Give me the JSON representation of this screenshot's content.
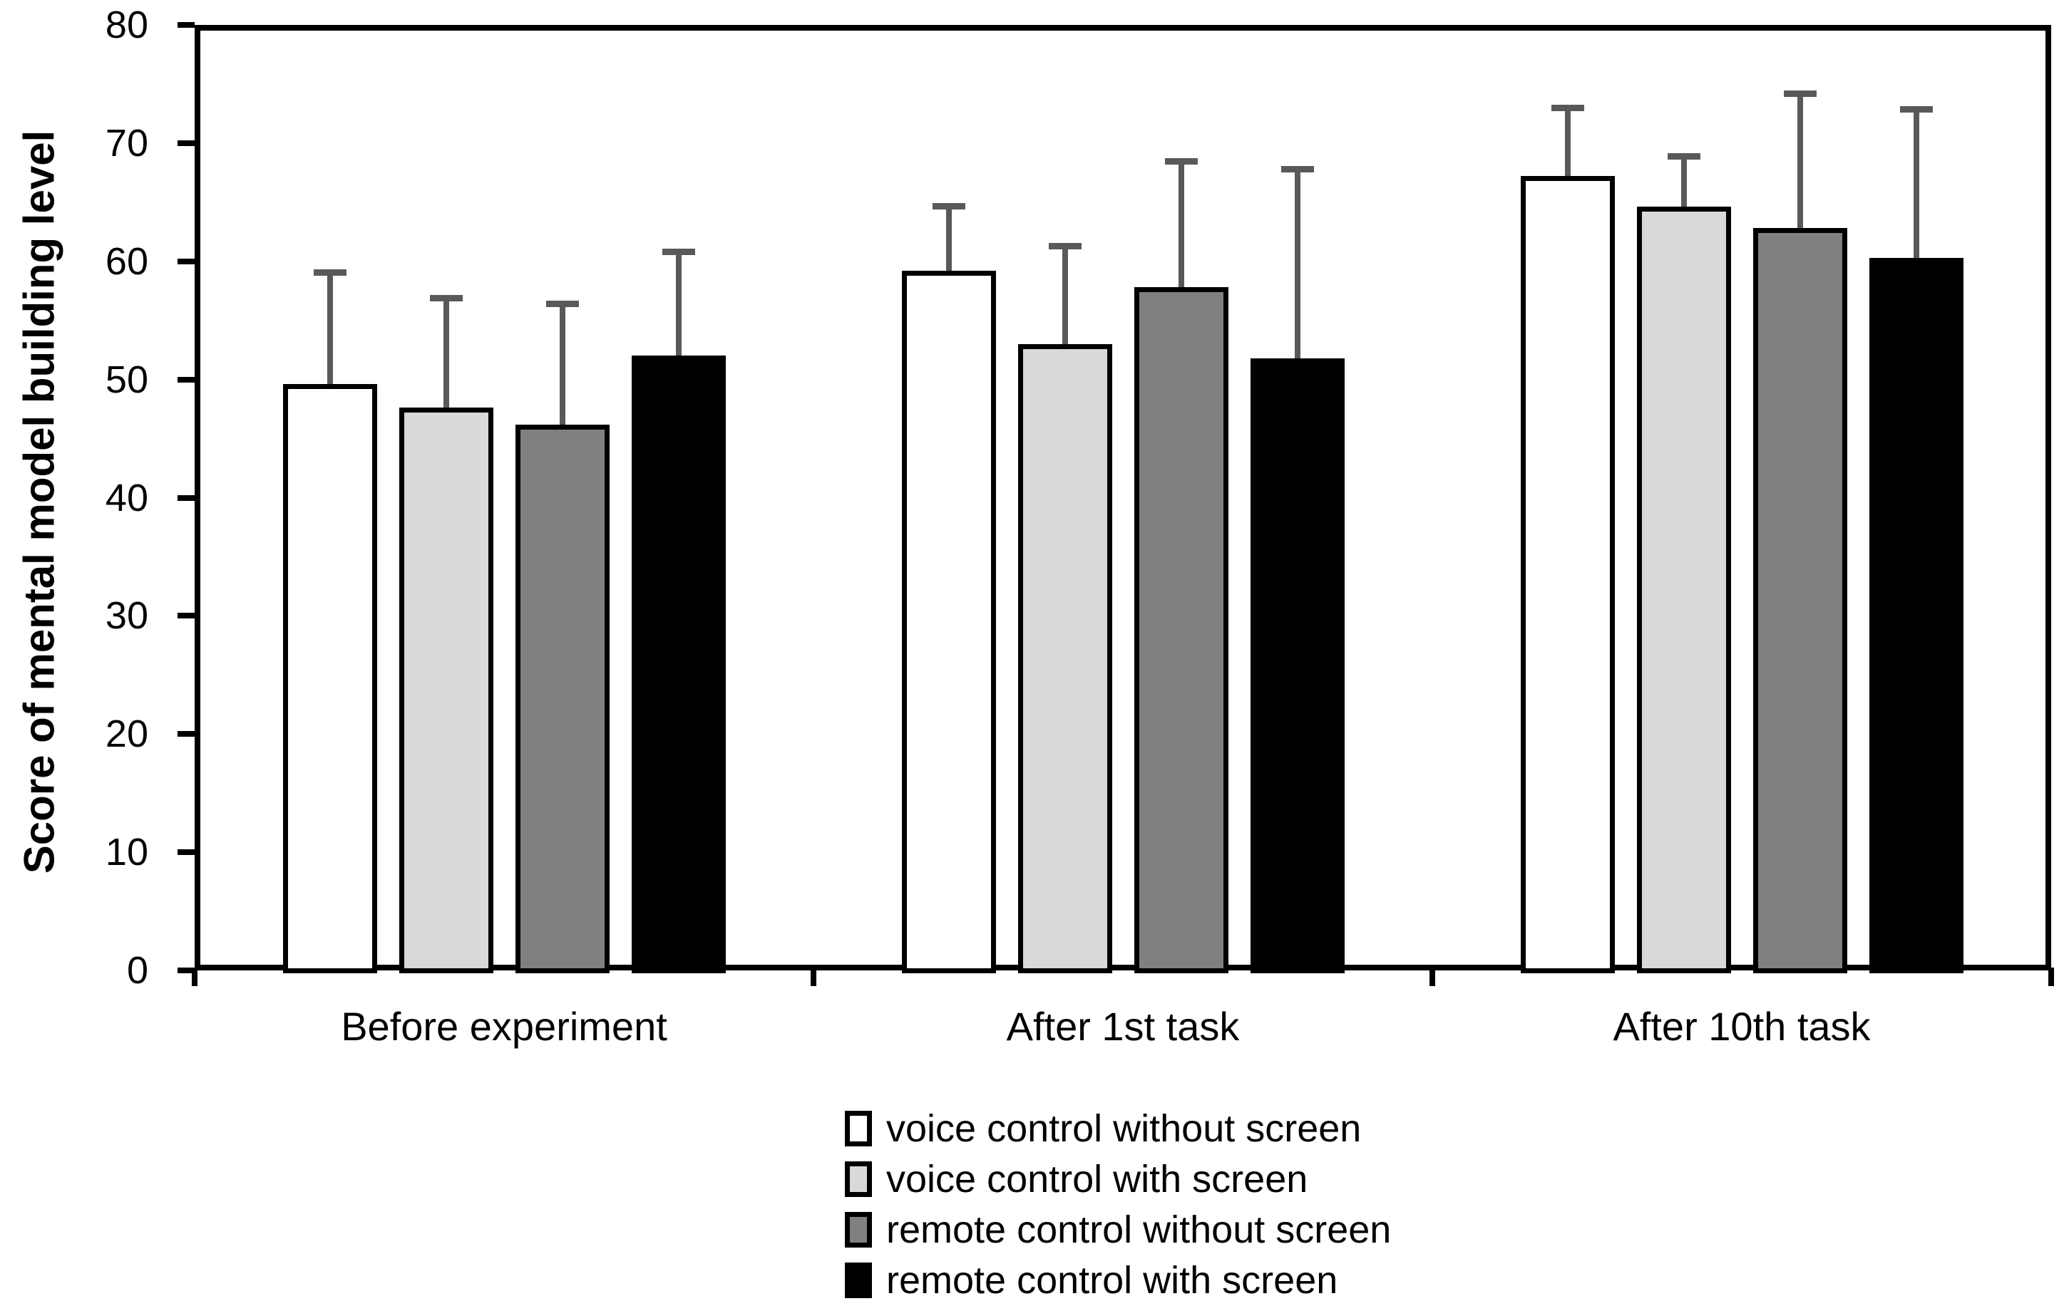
{
  "chart_data": {
    "type": "bar",
    "title": "",
    "ylabel": "Score of mental model building level",
    "xlabel": "",
    "ylim": [
      0,
      80
    ],
    "yticks": [
      0,
      10,
      20,
      30,
      40,
      50,
      60,
      70,
      80
    ],
    "grid": false,
    "legend_position": "bottom",
    "categories": [
      "Before experiment",
      "After 1st task",
      "After 10th task"
    ],
    "series": [
      {
        "name": "voice control without screen",
        "fill": "#ffffff",
        "values": [
          49.6,
          59.2,
          67.2
        ],
        "errors_up": [
          9.5,
          5.5,
          5.8
        ]
      },
      {
        "name": "voice control with screen",
        "fill": "#d9d9d9",
        "values": [
          47.6,
          53.0,
          64.6
        ],
        "errors_up": [
          9.3,
          8.3,
          4.3
        ]
      },
      {
        "name": "remote control without screen",
        "fill": "#808080",
        "values": [
          46.2,
          57.8,
          62.8
        ],
        "errors_up": [
          10.2,
          10.7,
          11.4
        ]
      },
      {
        "name": "remote control with screen",
        "fill": "#000000",
        "values": [
          52.0,
          51.8,
          60.3
        ],
        "errors_up": [
          8.8,
          16.0,
          12.6
        ]
      }
    ],
    "error_bar_color": "#595959",
    "bar_border_color": "#000000",
    "axis_color": "#000000"
  }
}
